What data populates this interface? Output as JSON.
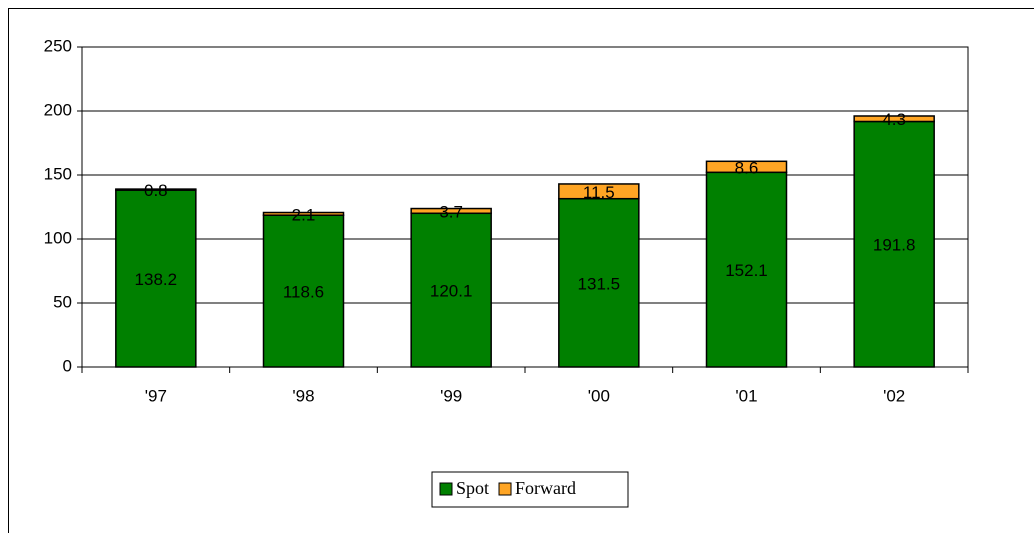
{
  "chart_data": {
    "type": "stacked_bar",
    "categories": [
      "'97",
      "'98",
      "'99",
      "'00",
      "'01",
      "'02"
    ],
    "series": [
      {
        "name": "Spot",
        "color": "#008000",
        "values": [
          138.2,
          118.6,
          120.1,
          131.5,
          152.1,
          191.8
        ]
      },
      {
        "name": "Forward",
        "color": "#ffa524",
        "values": [
          0.8,
          2.1,
          3.7,
          11.5,
          8.6,
          4.3
        ]
      }
    ],
    "ylim": [
      0,
      250
    ],
    "yticks": [
      0,
      50,
      100,
      150,
      200,
      250
    ],
    "grid": true,
    "legend": "bottom"
  }
}
